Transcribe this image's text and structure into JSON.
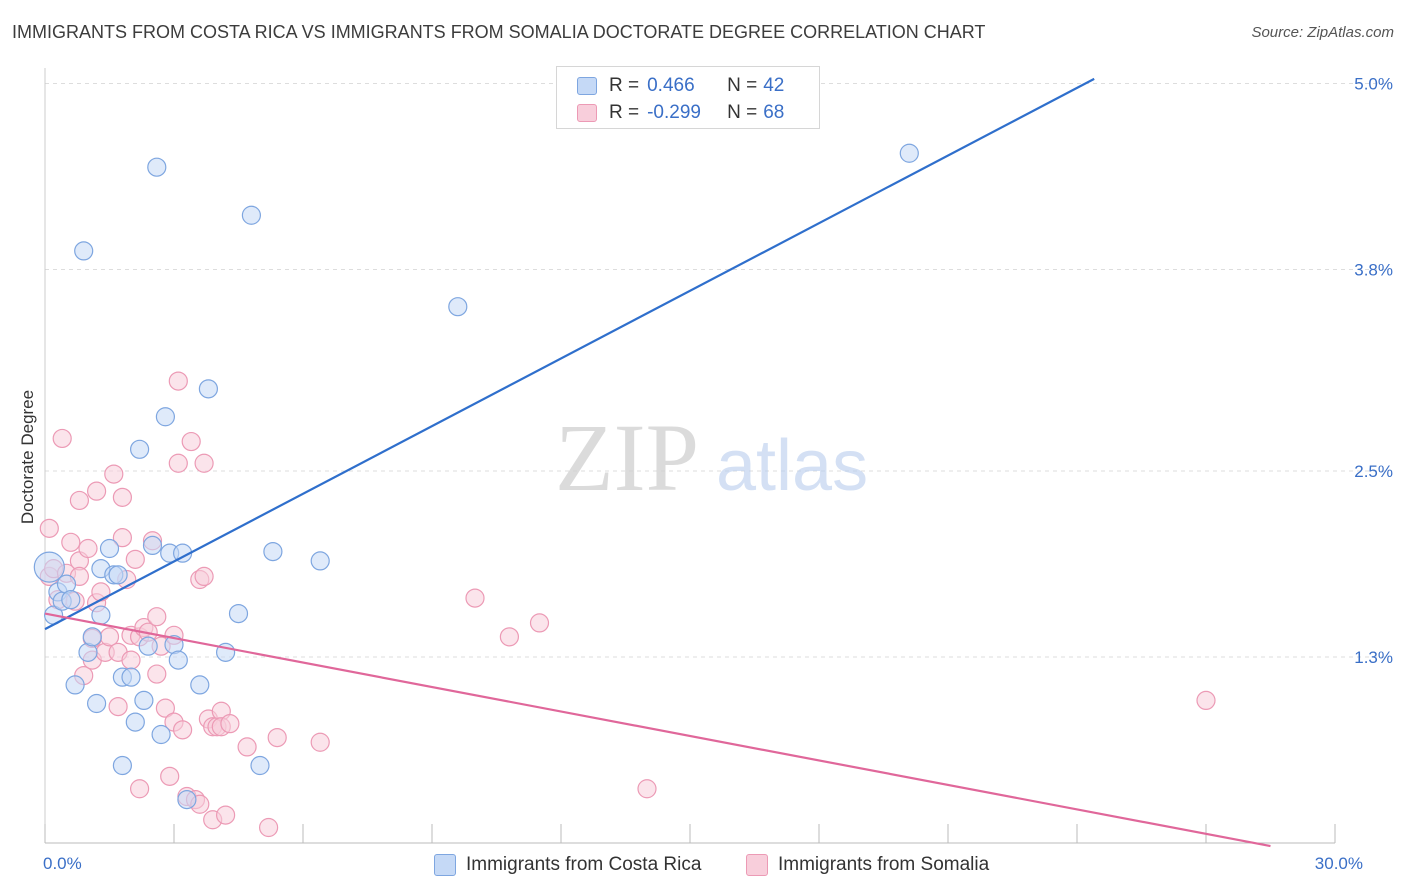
{
  "title": "IMMIGRANTS FROM COSTA RICA VS IMMIGRANTS FROM SOMALIA DOCTORATE DEGREE CORRELATION CHART",
  "source": "Source: ZipAtlas.com",
  "watermark": {
    "zip": "ZIP",
    "atlas": "atlas"
  },
  "legend": {
    "r_label": "R =",
    "n_label": "N =",
    "series": [
      {
        "name": "Immigrants from Costa Rica",
        "r": "0.466",
        "n": "42"
      },
      {
        "name": "Immigrants from Somalia",
        "r": "-0.299",
        "n": "68"
      }
    ]
  },
  "colors": {
    "blue_fill": "#c5d9f6",
    "blue_stroke": "#7ea6e0",
    "blue_line": "#2f6fcc",
    "pink_fill": "#f8cedb",
    "pink_stroke": "#ec9ab5",
    "pink_line": "#e0679a",
    "tick_label": "#3a6fc7",
    "grid": "#dddddd"
  },
  "chart_data": {
    "type": "scatter",
    "title": "IMMIGRANTS FROM COSTA RICA VS IMMIGRANTS FROM SOMALIA DOCTORATE DEGREE CORRELATION CHART",
    "xlabel": "",
    "ylabel": "Doctorate Degree",
    "xlim": [
      0,
      30
    ],
    "ylim": [
      0.1,
      5.1
    ],
    "x_tick_labels": [
      {
        "value": 0,
        "label": "0.0%"
      },
      {
        "value": 30,
        "label": "30.0%"
      }
    ],
    "x_tick_marks": [
      0,
      3,
      6,
      9,
      12,
      15,
      18,
      21,
      24,
      27,
      30
    ],
    "y_ticks": [
      {
        "value": 1.3,
        "label": "1.3%"
      },
      {
        "value": 2.5,
        "label": "2.5%"
      },
      {
        "value": 3.8,
        "label": "3.8%"
      },
      {
        "value": 5.0,
        "label": "5.0%"
      }
    ],
    "grid": true,
    "legend_position": "top-center",
    "series": [
      {
        "name": "Immigrants from Costa Rica",
        "color": "blue",
        "r": 0.466,
        "n": 42,
        "trend": {
          "x": [
            0,
            24.4
          ],
          "y": [
            1.48,
            5.03
          ]
        },
        "points": [
          {
            "x": 0.1,
            "y": 1.88,
            "big": true
          },
          {
            "x": 0.2,
            "y": 1.57
          },
          {
            "x": 0.3,
            "y": 1.72
          },
          {
            "x": 0.4,
            "y": 1.66
          },
          {
            "x": 0.5,
            "y": 1.77
          },
          {
            "x": 0.6,
            "y": 1.67
          },
          {
            "x": 0.7,
            "y": 1.12
          },
          {
            "x": 0.9,
            "y": 3.92
          },
          {
            "x": 1.0,
            "y": 1.33
          },
          {
            "x": 1.1,
            "y": 1.43
          },
          {
            "x": 1.2,
            "y": 1.0
          },
          {
            "x": 1.3,
            "y": 1.57
          },
          {
            "x": 1.3,
            "y": 1.87
          },
          {
            "x": 1.5,
            "y": 2.0
          },
          {
            "x": 1.6,
            "y": 1.83
          },
          {
            "x": 1.7,
            "y": 1.83
          },
          {
            "x": 1.8,
            "y": 1.17
          },
          {
            "x": 1.8,
            "y": 0.6
          },
          {
            "x": 2.0,
            "y": 1.17
          },
          {
            "x": 2.1,
            "y": 0.88
          },
          {
            "x": 2.2,
            "y": 2.64
          },
          {
            "x": 2.3,
            "y": 1.02
          },
          {
            "x": 2.4,
            "y": 1.37
          },
          {
            "x": 2.5,
            "y": 2.02
          },
          {
            "x": 2.6,
            "y": 4.46
          },
          {
            "x": 2.7,
            "y": 0.8
          },
          {
            "x": 2.8,
            "y": 2.85
          },
          {
            "x": 2.9,
            "y": 1.97
          },
          {
            "x": 3.0,
            "y": 1.38
          },
          {
            "x": 3.1,
            "y": 1.28
          },
          {
            "x": 3.2,
            "y": 1.97
          },
          {
            "x": 3.3,
            "y": 0.38
          },
          {
            "x": 3.6,
            "y": 1.12
          },
          {
            "x": 3.8,
            "y": 3.03
          },
          {
            "x": 4.2,
            "y": 1.33
          },
          {
            "x": 4.5,
            "y": 1.58
          },
          {
            "x": 4.8,
            "y": 4.15
          },
          {
            "x": 5.0,
            "y": 0.6
          },
          {
            "x": 5.3,
            "y": 1.98
          },
          {
            "x": 6.4,
            "y": 1.92
          },
          {
            "x": 9.6,
            "y": 3.56
          },
          {
            "x": 20.1,
            "y": 4.55
          }
        ]
      },
      {
        "name": "Immigrants from Somalia",
        "color": "pink",
        "r": -0.299,
        "n": 68,
        "trend": {
          "x": [
            0,
            28.5
          ],
          "y": [
            1.58,
            0.08
          ]
        },
        "points": [
          {
            "x": 0.1,
            "y": 2.13
          },
          {
            "x": 0.1,
            "y": 1.82
          },
          {
            "x": 0.2,
            "y": 1.87
          },
          {
            "x": 0.3,
            "y": 1.67
          },
          {
            "x": 0.4,
            "y": 2.71
          },
          {
            "x": 0.5,
            "y": 1.84
          },
          {
            "x": 0.6,
            "y": 2.04
          },
          {
            "x": 0.7,
            "y": 1.66
          },
          {
            "x": 0.8,
            "y": 1.92
          },
          {
            "x": 0.8,
            "y": 1.82
          },
          {
            "x": 0.8,
            "y": 2.31
          },
          {
            "x": 0.9,
            "y": 1.18
          },
          {
            "x": 1.0,
            "y": 2.0
          },
          {
            "x": 1.1,
            "y": 1.42
          },
          {
            "x": 1.1,
            "y": 1.28
          },
          {
            "x": 1.2,
            "y": 1.65
          },
          {
            "x": 1.2,
            "y": 2.37
          },
          {
            "x": 1.3,
            "y": 1.72
          },
          {
            "x": 1.4,
            "y": 1.33
          },
          {
            "x": 1.5,
            "y": 1.43
          },
          {
            "x": 1.6,
            "y": 2.48
          },
          {
            "x": 1.7,
            "y": 0.98
          },
          {
            "x": 1.7,
            "y": 1.33
          },
          {
            "x": 1.8,
            "y": 2.33
          },
          {
            "x": 1.8,
            "y": 2.07
          },
          {
            "x": 1.9,
            "y": 1.8
          },
          {
            "x": 2.0,
            "y": 1.44
          },
          {
            "x": 2.0,
            "y": 1.28
          },
          {
            "x": 2.1,
            "y": 1.93
          },
          {
            "x": 2.2,
            "y": 0.45
          },
          {
            "x": 2.2,
            "y": 1.43
          },
          {
            "x": 2.3,
            "y": 1.49
          },
          {
            "x": 2.4,
            "y": 1.46
          },
          {
            "x": 2.5,
            "y": 2.05
          },
          {
            "x": 2.6,
            "y": 1.56
          },
          {
            "x": 2.6,
            "y": 1.19
          },
          {
            "x": 2.7,
            "y": 1.37
          },
          {
            "x": 2.8,
            "y": 0.97
          },
          {
            "x": 2.9,
            "y": 0.53
          },
          {
            "x": 3.0,
            "y": 0.88
          },
          {
            "x": 3.0,
            "y": 1.44
          },
          {
            "x": 3.1,
            "y": 3.08
          },
          {
            "x": 3.1,
            "y": 2.55
          },
          {
            "x": 3.2,
            "y": 0.83
          },
          {
            "x": 3.3,
            "y": 0.4
          },
          {
            "x": 3.4,
            "y": 2.69
          },
          {
            "x": 3.5,
            "y": 0.38
          },
          {
            "x": 3.6,
            "y": 0.35
          },
          {
            "x": 3.6,
            "y": 1.8
          },
          {
            "x": 3.7,
            "y": 1.82
          },
          {
            "x": 3.7,
            "y": 2.55
          },
          {
            "x": 3.8,
            "y": 0.9
          },
          {
            "x": 3.9,
            "y": 0.25
          },
          {
            "x": 3.9,
            "y": 0.85
          },
          {
            "x": 4.0,
            "y": 0.85
          },
          {
            "x": 4.1,
            "y": 0.95
          },
          {
            "x": 4.1,
            "y": 0.85
          },
          {
            "x": 4.2,
            "y": 0.28
          },
          {
            "x": 4.3,
            "y": 0.87
          },
          {
            "x": 4.7,
            "y": 0.72
          },
          {
            "x": 5.2,
            "y": 0.2
          },
          {
            "x": 5.4,
            "y": 0.78
          },
          {
            "x": 6.4,
            "y": 0.75
          },
          {
            "x": 10.0,
            "y": 1.68
          },
          {
            "x": 10.8,
            "y": 1.43
          },
          {
            "x": 11.5,
            "y": 1.52
          },
          {
            "x": 14.0,
            "y": 0.45
          },
          {
            "x": 27.0,
            "y": 1.02
          }
        ]
      }
    ]
  }
}
